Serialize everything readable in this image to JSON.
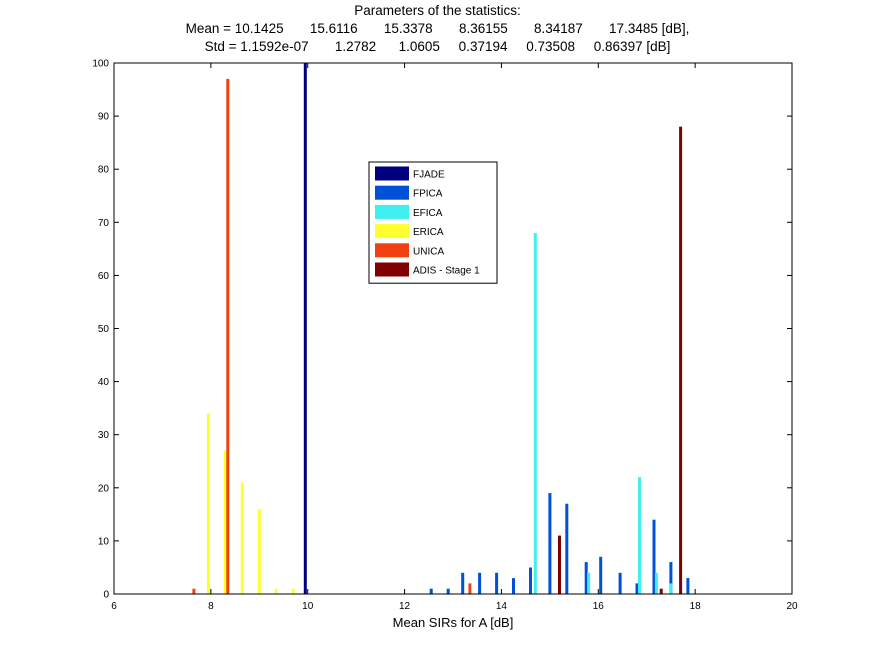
{
  "title_lines": [
    "Parameters of the statistics:",
    "Mean = 10.1425       15.6116       15.3378       8.36155       8.34187       17.3485 [dB],",
    "Std = 1.1592e-07       1.2782      1.0605     0.37194     0.73508     0.86397 [dB]"
  ],
  "chart_data": {
    "type": "bar",
    "xlabel": "Mean SIRs for A [dB]",
    "ylabel": "",
    "xlim": [
      6,
      20
    ],
    "ylim": [
      0,
      100
    ],
    "xticks": [
      6,
      8,
      10,
      12,
      14,
      16,
      18,
      20
    ],
    "yticks": [
      0,
      10,
      20,
      30,
      40,
      50,
      60,
      70,
      80,
      90,
      100
    ],
    "grid": false,
    "legend_position": "upper-center",
    "series": [
      {
        "name": "FJADE",
        "color": "#00007F",
        "x": [
          9.95
        ],
        "values": [
          100
        ]
      },
      {
        "name": "FPICA",
        "color": "#0050D8",
        "x": [
          12.55,
          12.9,
          13.2,
          13.55,
          13.9,
          14.25,
          14.6,
          15.0,
          15.35,
          15.75,
          16.05,
          16.45,
          16.8,
          17.15,
          17.5,
          17.85
        ],
        "values": [
          1,
          1,
          4,
          4,
          4,
          3,
          5,
          19,
          17,
          6,
          7,
          4,
          2,
          14,
          6,
          3
        ]
      },
      {
        "name": "EFICA",
        "color": "#40F0F0",
        "x": [
          14.7,
          15.8,
          16.85,
          17.2,
          17.5
        ],
        "values": [
          68,
          4,
          22,
          4,
          2
        ]
      },
      {
        "name": "ERICA",
        "color": "#FFFF30",
        "x": [
          7.95,
          8.3,
          8.65,
          9.0,
          9.35,
          9.7
        ],
        "values": [
          34,
          27,
          21,
          16,
          1,
          1
        ]
      },
      {
        "name": "UNICA",
        "color": "#F04010",
        "x": [
          7.65,
          8.35,
          13.35
        ],
        "values": [
          1,
          97,
          2
        ]
      },
      {
        "name": "ADIS - Stage 1",
        "color": "#800000",
        "x": [
          15.2,
          17.3,
          17.7
        ],
        "values": [
          11,
          1,
          88
        ]
      }
    ]
  }
}
